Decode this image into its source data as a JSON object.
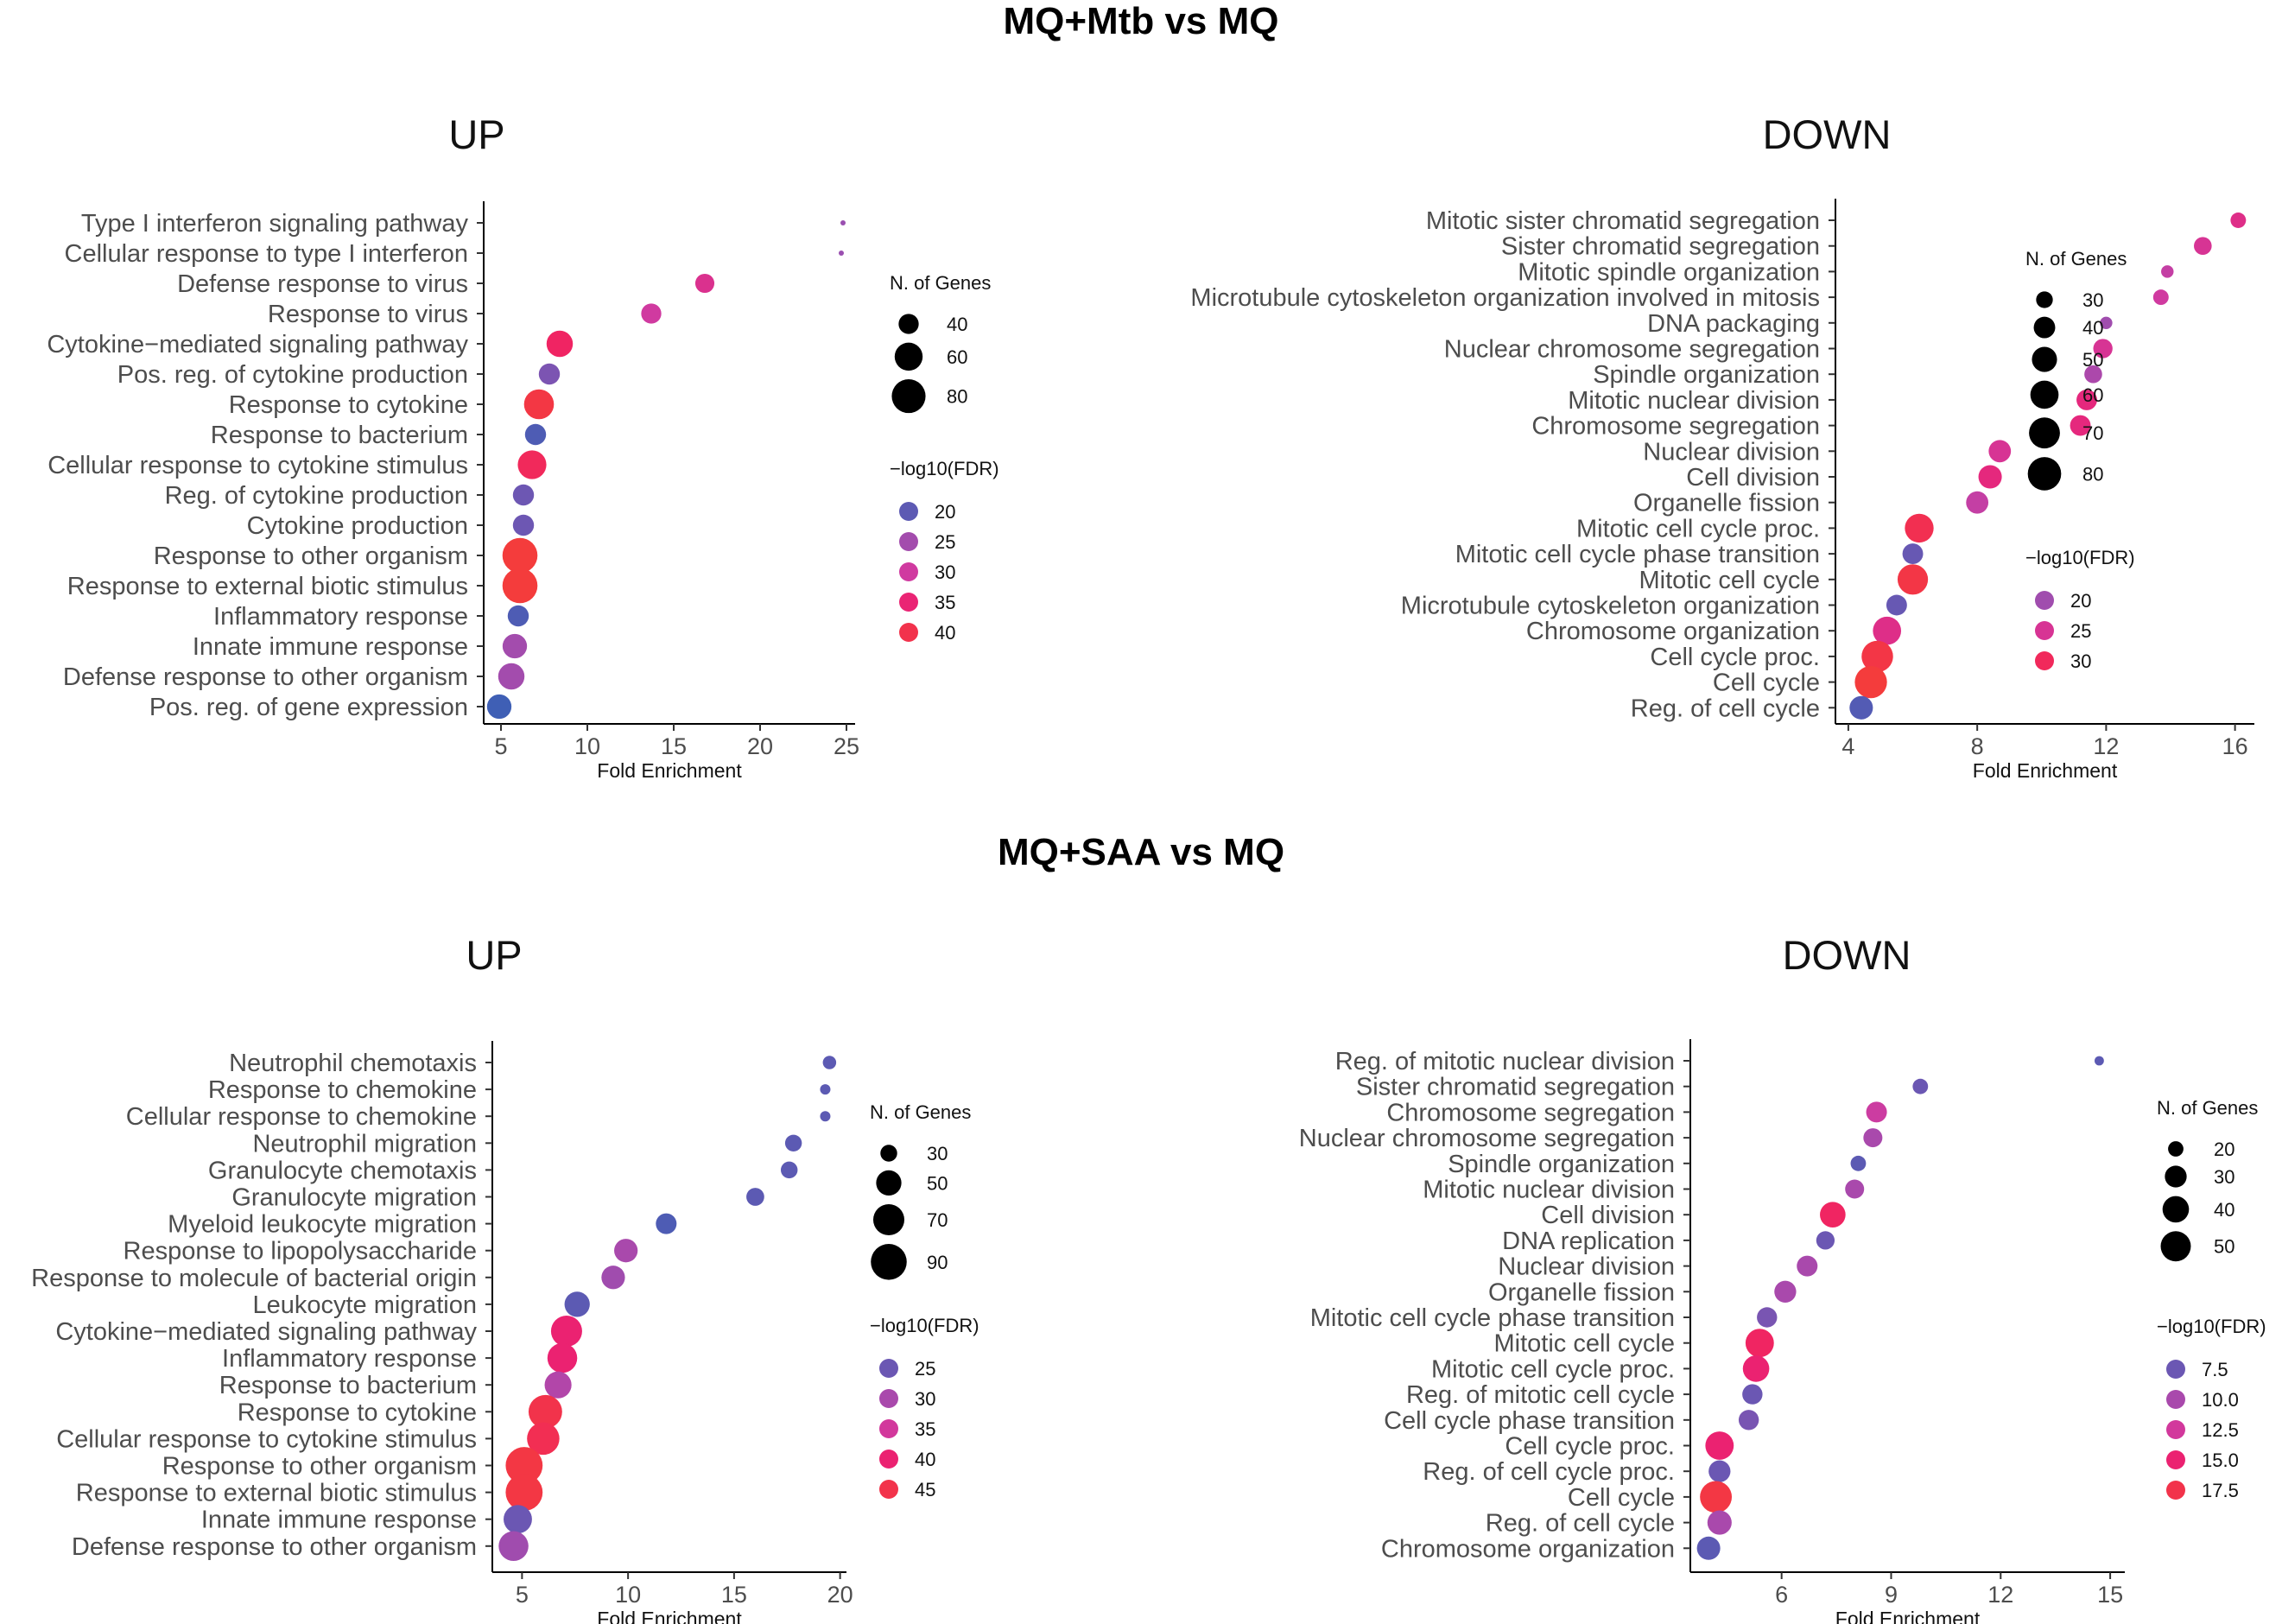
{
  "titles": {
    "section1": "MQ+Mtb vs MQ",
    "section2": "MQ+SAA vs MQ"
  },
  "colors": {
    "low": "#3f5fb5",
    "mid": "#9a4fb0",
    "high_mid": "#d03aa0",
    "high": "#ef1f6b",
    "max": "#f43c3c"
  },
  "chart_data": [
    {
      "type": "scatter",
      "title": "UP",
      "section": "MQ+Mtb vs MQ",
      "xlabel": "Fold Enrichment",
      "xlim": [
        4,
        25.5
      ],
      "xticks": [
        5,
        10,
        15,
        20,
        25
      ],
      "categories": [
        "Type I interferon signaling pathway",
        "Cellular response to type I interferon",
        "Defense response to virus",
        "Response to virus",
        "Cytokine−mediated signaling pathway",
        "Pos. reg. of cytokine production",
        "Response to cytokine",
        "Response to bacterium",
        "Cellular response to cytokine stimulus",
        "Reg. of cytokine production",
        "Cytokine production",
        "Response to other organism",
        "Response to external biotic stimulus",
        "Inflammatory response",
        "Innate immune response",
        "Defense response to other organism",
        "Pos. reg. of gene expression"
      ],
      "x": [
        24.8,
        24.7,
        16.8,
        13.7,
        8.4,
        7.8,
        7.2,
        7.0,
        6.8,
        6.3,
        6.3,
        6.1,
        6.1,
        6.0,
        5.8,
        5.6,
        4.9
      ],
      "genes": [
        25,
        25,
        38,
        40,
        55,
        42,
        66,
        42,
        62,
        42,
        42,
        85,
        85,
        42,
        50,
        55,
        50
      ],
      "neglog10fdr": [
        24,
        24,
        32,
        30,
        37,
        22,
        41,
        19,
        38,
        21,
        21,
        42,
        42,
        19,
        25,
        25,
        18
      ],
      "size_legend": {
        "title": "N. of Genes",
        "values": [
          40,
          60,
          80
        ]
      },
      "color_legend": {
        "title": "−log10(FDR)",
        "values": [
          20,
          25,
          30,
          35,
          40
        ]
      },
      "size_range": [
        25,
        90
      ],
      "color_range": [
        18,
        42
      ]
    },
    {
      "type": "scatter",
      "title": "DOWN",
      "section": "MQ+Mtb vs MQ",
      "xlabel": "Fold Enrichment",
      "xlim": [
        3.6,
        16.6
      ],
      "xticks": [
        4,
        8,
        12,
        16
      ],
      "categories": [
        "Mitotic sister chromatid segregation",
        "Sister chromatid segregation",
        "Mitotic spindle organization",
        "Microtubule cytoskeleton organization involved in mitosis",
        "DNA packaging",
        "Nuclear chromosome segregation",
        "Spindle organization",
        "Mitotic nuclear division",
        "Chromosome segregation",
        "Nuclear division",
        "Cell division",
        "Organelle fission",
        "Mitotic cell cycle proc.",
        "Mitotic cell cycle phase transition",
        "Mitotic cell cycle",
        "Microtubule cytoskeleton organization",
        "Chromosome organization",
        "Cell cycle proc.",
        "Cell cycle",
        "Reg. of cell cycle"
      ],
      "x": [
        16.1,
        15.0,
        13.9,
        13.7,
        12.0,
        11.9,
        11.6,
        11.4,
        11.2,
        8.7,
        8.4,
        8.0,
        6.2,
        6.0,
        6.0,
        5.5,
        5.2,
        4.9,
        4.7,
        4.4
      ],
      "genes": [
        28,
        32,
        24,
        28,
        24,
        35,
        32,
        38,
        38,
        42,
        45,
        42,
        62,
        38,
        68,
        38,
        60,
        72,
        75,
        45
      ],
      "neglog10fdr": [
        26,
        25,
        23,
        24,
        20,
        25,
        21,
        27,
        27,
        25,
        27,
        23,
        31,
        17,
        32,
        17,
        26,
        32,
        33,
        16
      ],
      "size_legend": {
        "title": "N. of Genes",
        "values": [
          30,
          40,
          50,
          60,
          70,
          80
        ]
      },
      "color_legend": {
        "title": "−log10(FDR)",
        "values": [
          20,
          25,
          30
        ]
      },
      "size_range": [
        20,
        85
      ],
      "color_range": [
        15,
        33
      ]
    },
    {
      "type": "scatter",
      "title": "UP",
      "section": "MQ+SAA vs MQ",
      "xlabel": "Fold Enrichment",
      "xlim": [
        3.6,
        20.3
      ],
      "xticks": [
        5,
        10,
        15,
        20
      ],
      "categories": [
        "Neutrophil chemotaxis",
        "Response to chemokine",
        "Cellular response to chemokine",
        "Neutrophil migration",
        "Granulocyte chemotaxis",
        "Granulocyte migration",
        "Myeloid leukocyte migration",
        "Response to lipopolysaccharide",
        "Response to molecule of bacterial origin",
        "Leukocyte migration",
        "Cytokine−mediated signaling pathway",
        "Inflammatory response",
        "Response to bacterium",
        "Response to cytokine",
        "Cellular response to cytokine stimulus",
        "Response to other organism",
        "Response to external biotic stimulus",
        "Innate immune response",
        "Defense response to other organism"
      ],
      "x": [
        19.5,
        19.3,
        19.3,
        17.8,
        17.6,
        16.0,
        11.8,
        9.9,
        9.3,
        7.6,
        7.1,
        6.9,
        6.7,
        6.1,
        6.0,
        5.1,
        5.1,
        4.8,
        4.6
      ],
      "genes": [
        25,
        22,
        22,
        30,
        30,
        32,
        38,
        45,
        45,
        50,
        70,
        65,
        55,
        80,
        75,
        95,
        95,
        60,
        65
      ],
      "neglog10fdr": [
        24,
        24,
        24,
        24,
        24,
        24,
        23,
        30,
        29,
        24,
        40,
        40,
        31,
        45,
        44,
        46,
        46,
        25,
        29
      ],
      "size_legend": {
        "title": "N. of Genes",
        "values": [
          30,
          50,
          70,
          90
        ]
      },
      "color_legend": {
        "title": "−log10(FDR)",
        "values": [
          25,
          30,
          35,
          40,
          45
        ]
      },
      "size_range": [
        20,
        100
      ],
      "color_range": [
        22,
        47
      ]
    },
    {
      "type": "scatter",
      "title": "DOWN",
      "section": "MQ+SAA vs MQ",
      "xlabel": "Fold Enrichment",
      "xlim": [
        3.5,
        15.4
      ],
      "xticks": [
        6,
        9,
        12,
        15
      ],
      "categories": [
        "Reg. of mitotic nuclear division",
        "Sister chromatid segregation",
        "Chromosome segregation",
        "Nuclear chromosome segregation",
        "Spindle organization",
        "Mitotic nuclear division",
        "Cell division",
        "DNA replication",
        "Nuclear division",
        "Organelle fission",
        "Mitotic cell cycle phase transition",
        "Mitotic cell cycle",
        "Mitotic cell cycle proc.",
        "Reg. of mitotic cell cycle",
        "Cell cycle phase transition",
        "Cell cycle proc.",
        "Reg. of cell cycle proc.",
        "Cell cycle",
        "Reg. of cell cycle",
        "Chromosome organization"
      ],
      "x": [
        14.7,
        9.8,
        8.6,
        8.5,
        8.1,
        8.0,
        7.4,
        7.2,
        6.7,
        6.1,
        5.6,
        5.4,
        5.3,
        5.2,
        5.1,
        4.3,
        4.3,
        4.2,
        4.3,
        4.0
      ],
      "genes": [
        15,
        20,
        28,
        25,
        20,
        25,
        38,
        24,
        28,
        30,
        27,
        45,
        40,
        27,
        27,
        45,
        30,
        55,
        35,
        33
      ],
      "neglog10fdr": [
        7,
        7.5,
        12,
        10,
        7,
        10,
        16,
        7.5,
        10,
        10,
        8,
        16,
        15,
        7.5,
        8,
        15,
        7.5,
        18,
        10,
        7
      ],
      "size_legend": {
        "title": "N. of Genes",
        "values": [
          20,
          30,
          40,
          50
        ]
      },
      "color_legend": {
        "title": "−log10(FDR)",
        "values": [
          "7.5",
          "10.0",
          "12.5",
          "15.0",
          "17.5"
        ]
      },
      "size_range": [
        14,
        58
      ],
      "color_range": [
        6,
        18.5
      ]
    }
  ]
}
